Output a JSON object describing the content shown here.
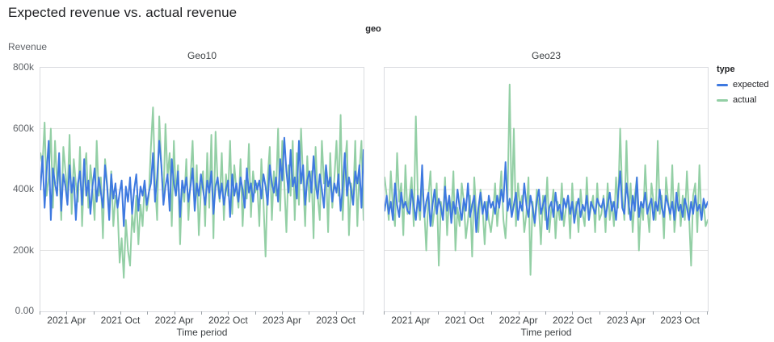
{
  "header": {
    "title": "Expected revenue vs. actual revenue"
  },
  "facet_band": {
    "label": "geo"
  },
  "legend": {
    "title": "type",
    "items": [
      {
        "label": "expected",
        "color": "#3e79e0"
      },
      {
        "label": "actual",
        "color": "#93cfa5"
      }
    ]
  },
  "chart_data": {
    "type": "line",
    "title": "Expected revenue vs. actual revenue",
    "facet_by": "geo",
    "xlabel": "Time period",
    "ylabel": "Revenue",
    "y_unit": "k (thousands)",
    "ylim": [
      0,
      800
    ],
    "y_ticks": [
      {
        "label": "800k",
        "value": 800
      },
      {
        "label": "600k",
        "value": 600
      },
      {
        "label": "400k",
        "value": 400
      },
      {
        "label": "200k",
        "value": 200
      },
      {
        "label": "0.00",
        "value": 0
      }
    ],
    "x_range": [
      "2021 Jan",
      "2023 Dec"
    ],
    "x_total_months": 36,
    "x_ticks": [
      {
        "label": "2021 Apr",
        "month": 3
      },
      {
        "label": "2021 Oct",
        "month": 9
      },
      {
        "label": "2022 Apr",
        "month": 15
      },
      {
        "label": "2022 Oct",
        "month": 21
      },
      {
        "label": "2023 Apr",
        "month": 27
      },
      {
        "label": "2023 Oct",
        "month": 33
      }
    ],
    "x_minor_tick_months": [
      0,
      3,
      6,
      9,
      12,
      15,
      18,
      21,
      24,
      27,
      30,
      33,
      36
    ],
    "points_per_series": 156,
    "grid": "horizontal",
    "legend_position": "right",
    "facets": [
      {
        "name": "Geo10",
        "series": [
          {
            "name": "expected",
            "color": "#3e79e0",
            "values": [
              400,
              510,
              340,
              460,
              560,
              300,
              470,
              420,
              380,
              520,
              330,
              450,
              410,
              350,
              480,
              390,
              440,
              300,
              420,
              460,
              350,
              500,
              380,
              430,
              320,
              410,
              470,
              360,
              440,
              390,
              340,
              480,
              410,
              300,
              450,
              370,
              420,
              340,
              390,
              430,
              280,
              410,
              360,
              440,
              320,
              400,
              450,
              330,
              410,
              380,
              430,
              350,
              390,
              420,
              520,
              360,
              440,
              560,
              480,
              350,
              410,
              450,
              330,
              500,
              420,
              380,
              460,
              310,
              430,
              390,
              440,
              360,
              410,
              470,
              330,
              420,
              380,
              450,
              400,
              350,
              430,
              390,
              460,
              320,
              410,
              440,
              370,
              420,
              350,
              400,
              430,
              310,
              450,
              380,
              420,
              360,
              440,
              400,
              340,
              470,
              390,
              420,
              360,
              430,
              400,
              430,
              370,
              450,
              410,
              350,
              480,
              420,
              390,
              440,
              360,
              500,
              430,
              570,
              460,
              390,
              530,
              410,
              440,
              370,
              560,
              420,
              480,
              350,
              430,
              460,
              390,
              510,
              420,
              370,
              450,
              400,
              340,
              480,
              410,
              440,
              360,
              420,
              390,
              450,
              330,
              410,
              520,
              380,
              440,
              400,
              350,
              460,
              420,
              480,
              340,
              530
            ]
          },
          {
            "name": "actual",
            "color": "#93cfa5",
            "values": [
              520,
              480,
              620,
              380,
              440,
              600,
              340,
              560,
              420,
              480,
              300,
              540,
              460,
              380,
              580,
              320,
              500,
              420,
              360,
              540,
              280,
              460,
              520,
              340,
              480,
              400,
              300,
              560,
              380,
              440,
              240,
              500,
              420,
              320,
              460,
              280,
              380,
              340,
              160,
              240,
              110,
              300,
              200,
              150,
              320,
              260,
              380,
              220,
              350,
              280,
              420,
              330,
              380,
              540,
              670,
              420,
              300,
              640,
              480,
              360,
              615,
              440,
              520,
              280,
              560,
              380,
              480,
              220,
              420,
              360,
              500,
              300,
              440,
              560,
              330,
              480,
              250,
              400,
              460,
              280,
              520,
              340,
              580,
              240,
              590,
              420,
              360,
              520,
              300,
              450,
              380,
              560,
              320,
              480,
              400,
              340,
              500,
              280,
              430,
              370,
              550,
              310,
              460,
              390,
              420,
              280,
              500,
              360,
              180,
              440,
              540,
              300,
              460,
              380,
              600,
              330,
              560,
              420,
              260,
              480,
              380,
              560,
              300,
              520,
              350,
              600,
              430,
              280,
              510,
              360,
              460,
              240,
              540,
              380,
              300,
              560,
              420,
              480,
              260,
              520,
              340,
              440,
              560,
              380,
              645,
              300,
              480,
              560,
              250,
              420,
              360,
              560,
              280,
              460,
              560,
              300
            ]
          }
        ]
      },
      {
        "name": "Geo23",
        "series": [
          {
            "name": "expected",
            "color": "#3e79e0",
            "values": [
              330,
              380,
              320,
              360,
              300,
              420,
              350,
              310,
              390,
              340,
              360,
              330,
              320,
              400,
              350,
              300,
              380,
              330,
              480,
              310,
              360,
              390,
              280,
              350,
              400,
              320,
              370,
              340,
              300,
              410,
              330,
              380,
              290,
              360,
              320,
              400,
              340,
              300,
              370,
              330,
              420,
              310,
              350,
              380,
              260,
              340,
              390,
              320,
              360,
              300,
              380,
              340,
              360,
              320,
              380,
              340,
              400,
              360,
              490,
              330,
              370,
              310,
              350,
              390,
              300,
              360,
              330,
              420,
              350,
              310,
              380,
              340,
              290,
              360,
              400,
              320,
              350,
              380,
              270,
              340,
              360,
              310,
              390,
              330,
              350,
              300,
              370,
              340,
              380,
              320,
              360,
              290,
              340,
              370,
              310,
              350,
              330,
              380,
              300,
              360,
              340,
              320,
              370,
              350,
              340,
              370,
              310,
              350,
              390,
              330,
              360,
              300,
              380,
              460,
              340,
              320,
              420,
              360,
              300,
              380,
              330,
              440,
              310,
              360,
              340,
              390,
              320,
              350,
              370,
              300,
              360,
              330,
              400,
              340,
              310,
              380,
              350,
              320,
              360,
              300,
              390,
              330,
              350,
              310,
              370,
              340,
              300,
              360,
              320,
              380,
              330,
              350,
              300,
              370,
              340,
              360
            ]
          },
          {
            "name": "actual",
            "color": "#93cfa5",
            "values": [
              440,
              380,
              300,
              460,
              340,
              280,
              520,
              360,
              420,
              250,
              480,
              320,
              380,
              440,
              280,
              640,
              360,
              300,
              420,
              340,
              200,
              380,
              460,
              280,
              340,
              420,
              150,
              360,
              300,
              440,
              250,
              380,
              320,
              460,
              200,
              340,
              280,
              420,
              360,
              240,
              300,
              380,
              180,
              440,
              320,
              260,
              400,
              340,
              220,
              360,
              300,
              260,
              320,
              420,
              280,
              360,
              460,
              300,
              240,
              380,
              745,
              320,
              600,
              280,
              420,
              340,
              380,
              260,
              320,
              440,
              120,
              360,
              280,
              400,
              340,
              220,
              380,
              300,
              440,
              260,
              340,
              400,
              240,
              360,
              300,
              420,
              280,
              340,
              380,
              240,
              420,
              300,
              360,
              260,
              400,
              320,
              280,
              440,
              300,
              340,
              380,
              260,
              420,
              300,
              320,
              380,
              260,
              420,
              300,
              360,
              280,
              440,
              340,
              600,
              380,
              300,
              560,
              320,
              420,
              260,
              380,
              440,
              200,
              360,
              300,
              480,
              340,
              260,
              420,
              360,
              300,
              560,
              320,
              380,
              240,
              440,
              360,
              300,
              480,
              260,
              340,
              420,
              280,
              380,
              300,
              460,
              320,
              150,
              380,
              420,
              260,
              480,
              300,
              360,
              280,
              300
            ]
          }
        ]
      }
    ]
  }
}
